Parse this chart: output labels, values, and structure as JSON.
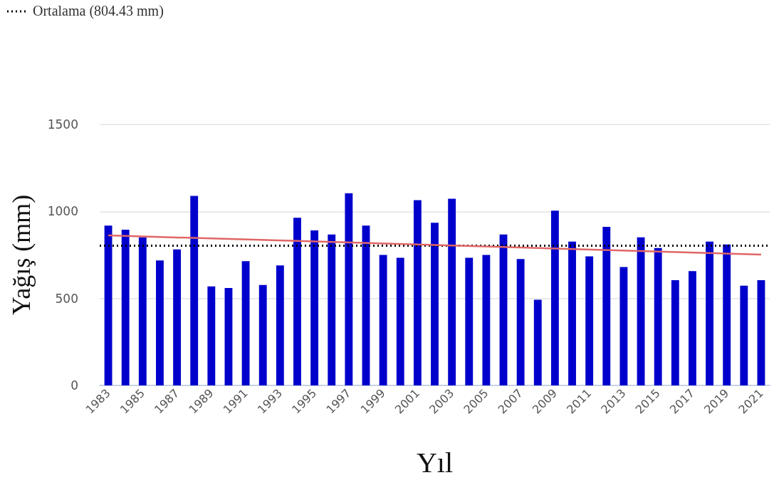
{
  "chart_data": {
    "type": "bar",
    "xlabel": "Yıl",
    "ylabel": "Yağış (mm)",
    "categories": [
      "1983",
      null,
      "1985",
      null,
      "1987",
      null,
      "1989",
      null,
      "1991",
      null,
      "1993",
      null,
      "1995",
      null,
      "1997",
      null,
      "1999",
      null,
      "2001",
      null,
      "2003",
      null,
      "2005",
      null,
      "2007",
      null,
      "2009",
      null,
      "2011",
      null,
      "2013",
      null,
      "2015",
      null,
      "2017",
      null,
      "2019",
      null,
      "2021"
    ],
    "series": [
      {
        "color": "#0000cc",
        "values": [
          919,
          895,
          851,
          718,
          782,
          1089,
          569,
          560,
          714,
          577,
          690,
          964,
          891,
          867,
          1105,
          919,
          750,
          734,
          1065,
          935,
          1073,
          734,
          750,
          867,
          726,
          492,
          1004,
          827,
          742,
          911,
          681,
          851,
          790,
          605,
          657,
          827,
          810,
          573,
          605
        ]
      },
      {
        "type": "line",
        "color": "#e06666",
        "values": [
          862,
          null,
          null,
          null,
          null,
          null,
          null,
          null,
          null,
          null,
          null,
          null,
          null,
          null,
          null,
          null,
          null,
          null,
          null,
          null,
          null,
          null,
          null,
          null,
          null,
          null,
          null,
          null,
          null,
          null,
          null,
          null,
          null,
          null,
          null,
          null,
          null,
          null,
          752
        ]
      }
    ],
    "ylim": [
      0,
      1500
    ],
    "yticks": [
      0,
      500,
      1000,
      1500
    ],
    "grid": "y",
    "marker": "none",
    "ref_lines": [
      {
        "axis": "y",
        "value": 804.43,
        "label": "Ortalama (804.43 mm)",
        "color": "#000000",
        "line_style": "dotted"
      }
    ]
  }
}
